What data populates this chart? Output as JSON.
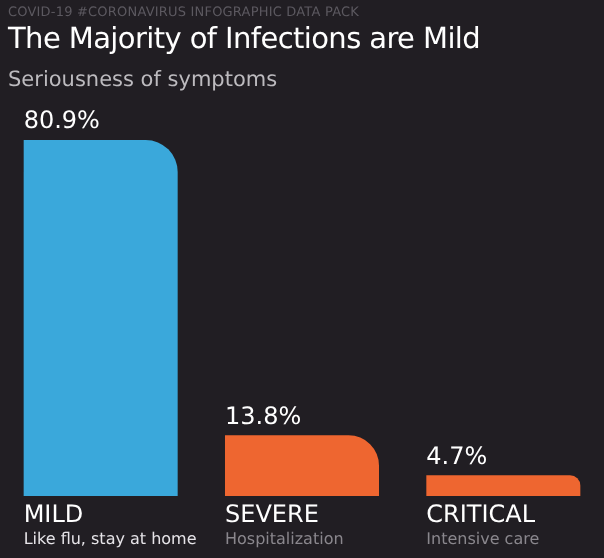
{
  "chart_data": {
    "type": "bar",
    "title": "The Majority of Infections are Mild",
    "subtitle": "Seriousness of symptoms",
    "categories": [
      "MILD",
      "SEVERE",
      "CRITICAL"
    ],
    "values": [
      80.9,
      13.8,
      4.7
    ],
    "colors": [
      "#3aa8db",
      "#ee6630",
      "#ee6630"
    ],
    "data_labels": true,
    "value_labels": [
      "80.9%",
      "13.8%",
      "4.7%"
    ],
    "annotations": [
      "COVID-19 #CORONAVIRUS INFOGRAPHIC DATA PACK",
      "Like flu, stay at home",
      "Hospitalization",
      "Intensive care"
    ]
  }
}
